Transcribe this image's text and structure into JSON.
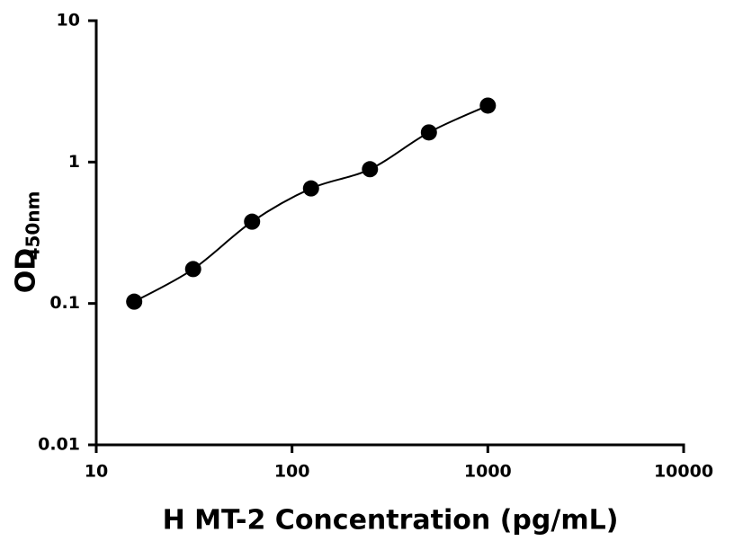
{
  "chart_data": {
    "type": "scatter",
    "xlabel": "H MT-2 Concentration (pg/mL)",
    "ylabel": "OD",
    "ylabel_subscript": "450nm",
    "x": [
      15.625,
      31.25,
      62.5,
      125,
      250,
      500,
      1000
    ],
    "series": [
      {
        "color": "#000000",
        "values": [
          0.103,
          0.175,
          0.379,
          0.651,
          0.89,
          1.62,
          2.51
        ]
      }
    ],
    "xscale": "log",
    "yscale": "log",
    "xlim": [
      10,
      10000
    ],
    "ylim": [
      0.01,
      10
    ],
    "xticks": [
      10,
      100,
      1000,
      10000
    ],
    "yticks": [
      0.01,
      0.1,
      1,
      10
    ],
    "fit_curve": true
  }
}
